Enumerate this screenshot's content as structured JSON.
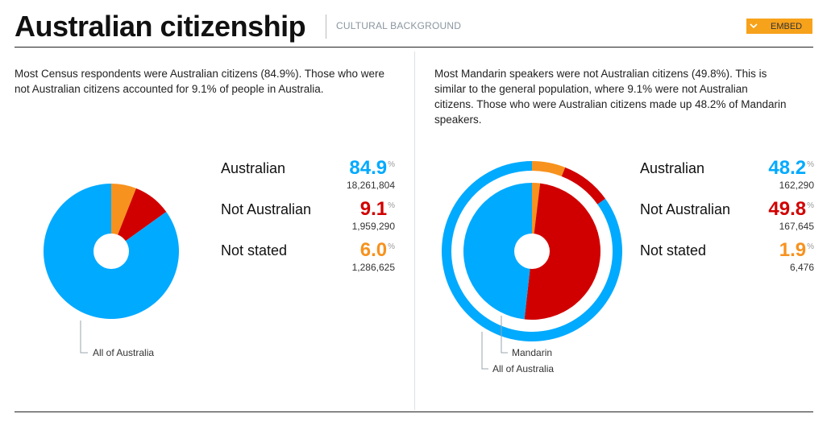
{
  "header": {
    "title": "Australian citizenship",
    "subtitle": "CULTURAL BACKGROUND",
    "embed_label": "EMBED"
  },
  "colors": {
    "australian": "#00aaff",
    "not_australian": "#d10000",
    "not_stated": "#f7921e",
    "accent": "#f7a21b"
  },
  "left": {
    "description": "Most Census respondents were Australian citizens (84.9%). Those who were not Australian citizens accounted for 9.1% of people in Australia.",
    "ring_label": "All of Australia",
    "legend": [
      {
        "name": "Australian",
        "pct": "84.9",
        "count": "18,261,804",
        "color": "#00aaff"
      },
      {
        "name": "Not Australian",
        "pct": "9.1",
        "count": "1,959,290",
        "color": "#d10000"
      },
      {
        "name": "Not stated",
        "pct": "6.0",
        "count": "1,286,625",
        "color": "#f7921e"
      }
    ],
    "pct_unit": "%"
  },
  "right": {
    "description": "Most Mandarin speakers were not Australian citizens (49.8%). This is similar to the general population, where 9.1% were not Australian citizens. Those who were Australian citizens made up 48.2% of Mandarin speakers.",
    "inner_label": "Mandarin",
    "outer_label": "All of Australia",
    "legend": [
      {
        "name": "Australian",
        "pct": "48.2",
        "count": "162,290",
        "color": "#00aaff"
      },
      {
        "name": "Not Australian",
        "pct": "49.8",
        "count": "167,645",
        "color": "#d10000"
      },
      {
        "name": "Not stated",
        "pct": "1.9",
        "count": "6,476",
        "color": "#f7921e"
      }
    ],
    "pct_unit": "%"
  },
  "chart_data": [
    {
      "type": "pie",
      "title": "",
      "label": "All of Australia",
      "categories": [
        "Not stated",
        "Not Australian",
        "Australian"
      ],
      "values": [
        6.0,
        9.1,
        84.9
      ],
      "colors": [
        "#f7921e",
        "#d10000",
        "#00aaff"
      ]
    },
    {
      "type": "pie",
      "title": "",
      "inner": {
        "label": "Mandarin",
        "categories": [
          "Not stated",
          "Not Australian",
          "Australian"
        ],
        "values": [
          1.9,
          49.8,
          48.2
        ],
        "colors": [
          "#f7921e",
          "#d10000",
          "#00aaff"
        ]
      },
      "outer": {
        "label": "All of Australia",
        "categories": [
          "Not stated",
          "Not Australian",
          "Australian"
        ],
        "values": [
          6.0,
          9.1,
          84.9
        ],
        "colors": [
          "#f7921e",
          "#d10000",
          "#00aaff"
        ]
      }
    }
  ]
}
